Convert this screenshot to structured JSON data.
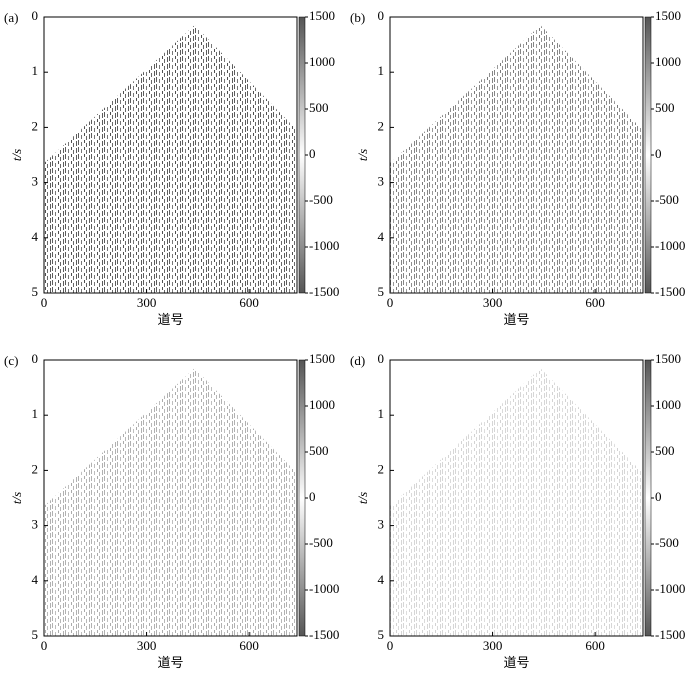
{
  "chart_data": [
    {
      "type": "heatmap",
      "label": "(a)",
      "xlabel": "道号",
      "ylabel": "t/s",
      "xlim": [
        0,
        740
      ],
      "xticks": [
        0,
        300,
        600
      ],
      "ylim": [
        0,
        5
      ],
      "y_inverted": true,
      "yticks": [
        0,
        1,
        2,
        3,
        4,
        5
      ],
      "colorbar": {
        "lim": [
          -1500,
          1500
        ],
        "ticks": [
          1500,
          1000,
          500,
          0,
          -500,
          -1000,
          -1500
        ]
      },
      "colormap": [
        "#555555",
        "#ffffff",
        "#555555"
      ]
    },
    {
      "type": "heatmap",
      "label": "(b)",
      "xlabel": "道号",
      "ylabel": "t/s",
      "xlim": [
        0,
        740
      ],
      "xticks": [
        0,
        300,
        600
      ],
      "ylim": [
        0,
        5
      ],
      "y_inverted": true,
      "yticks": [
        0,
        1,
        2,
        3,
        4,
        5
      ],
      "colorbar": {
        "lim": [
          -1500,
          1500
        ],
        "ticks": [
          1500,
          1000,
          500,
          0,
          -500,
          -1000,
          -1500
        ]
      },
      "colormap": [
        "#555555",
        "#ffffff",
        "#555555"
      ]
    },
    {
      "type": "heatmap",
      "label": "(c)",
      "xlabel": "道号",
      "ylabel": "t/s",
      "xlim": [
        0,
        740
      ],
      "xticks": [
        0,
        300,
        600
      ],
      "ylim": [
        0,
        5
      ],
      "y_inverted": true,
      "yticks": [
        0,
        1,
        2,
        3,
        4,
        5
      ],
      "colorbar": {
        "lim": [
          -1500,
          1500
        ],
        "ticks": [
          1500,
          1000,
          500,
          0,
          -500,
          -1000,
          -1500
        ]
      },
      "colormap": [
        "#555555",
        "#ffffff",
        "#555555"
      ]
    },
    {
      "type": "heatmap",
      "label": "(d)",
      "xlabel": "道号",
      "ylabel": "t/s",
      "xlim": [
        0,
        740
      ],
      "xticks": [
        0,
        300,
        600
      ],
      "ylim": [
        0,
        5
      ],
      "y_inverted": true,
      "yticks": [
        0,
        1,
        2,
        3,
        4,
        5
      ],
      "colorbar": {
        "lim": [
          -1500,
          1500
        ],
        "ticks": [
          1500,
          1000,
          500,
          0,
          -500,
          -1000,
          -1500
        ]
      },
      "colormap": [
        "#555555",
        "#ffffff",
        "#555555"
      ]
    }
  ]
}
